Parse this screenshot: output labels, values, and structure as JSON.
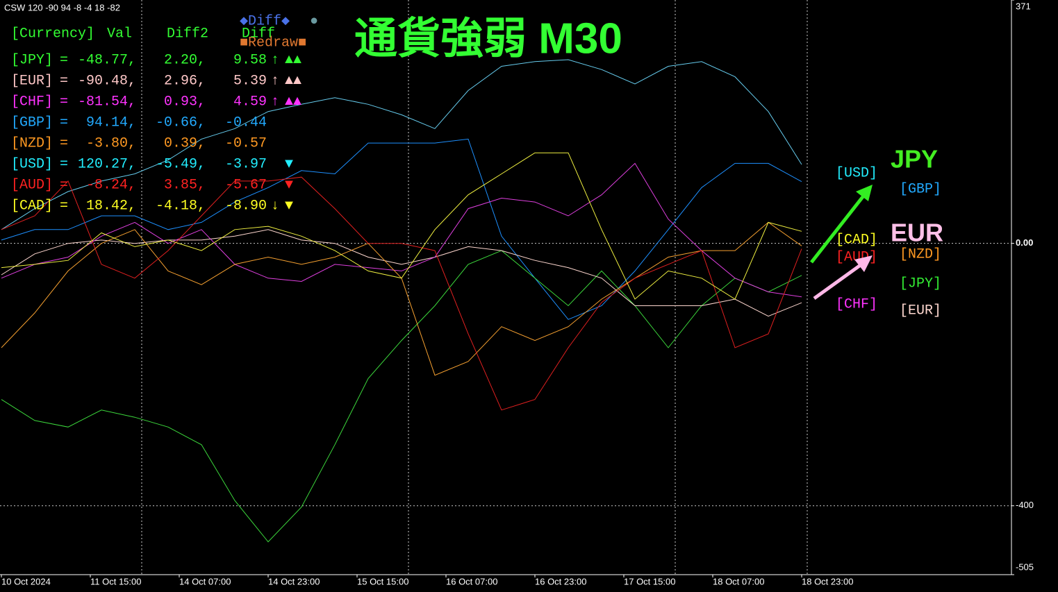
{
  "chart_data": {
    "type": "line",
    "info": "CSW 120 -90 94 -8 -4 18 -82",
    "title": "通貨強弱 M30",
    "buttons": [
      {
        "text": "◆Diff◆",
        "color": "#4a72e8"
      },
      {
        "text": "●",
        "color": "#6a9aa0"
      },
      {
        "text": "■Redraw■",
        "color": "#e07830"
      }
    ],
    "panel": {
      "header": [
        "[Currency]",
        "Val",
        "Diff2",
        "Diff"
      ],
      "header_color": "#33ff33",
      "rows": [
        {
          "label": "[JPY]",
          "eq": "=",
          "val": "-48.77,",
          "diff2": "2.20,",
          "diff": "9.58",
          "arrow": "↑",
          "mark": "▲▲",
          "color": "#33ff33"
        },
        {
          "label": "[EUR]",
          "eq": "=",
          "val": "-90.48,",
          "diff2": "2.96,",
          "diff": "5.39",
          "arrow": "↑",
          "mark": "▲▲",
          "color": "#ffc8c8"
        },
        {
          "label": "[CHF]",
          "eq": "=",
          "val": "-81.54,",
          "diff2": "0.93,",
          "diff": "4.59",
          "arrow": "↑",
          "mark": "▲▲",
          "color": "#ff33ff"
        },
        {
          "label": "[GBP]",
          "eq": "=",
          "val": "94.14,",
          "diff2": "-0.66,",
          "diff": "-0.44",
          "color": "#22aaff"
        },
        {
          "label": "[NZD]",
          "eq": "=",
          "val": "-3.80,",
          "diff2": "0.39,",
          "diff": "-0.57",
          "color": "#ff9922"
        },
        {
          "label": "[USD]",
          "eq": "=",
          "val": "120.27,",
          "diff2": "-5.49,",
          "diff": "-3.97",
          "mark": "▼",
          "color": "#22eeff"
        },
        {
          "label": "[AUD]",
          "eq": "=",
          "val": "-8.24,",
          "diff2": "3.85,",
          "diff": "-5.67",
          "mark": "▼",
          "color": "#ff2222"
        },
        {
          "label": "[CAD]",
          "eq": "=",
          "val": "18.42,",
          "diff2": "-4.18,",
          "diff": "-8.90",
          "arrow": "↓",
          "mark": "▼",
          "color": "#ffff22"
        }
      ]
    },
    "annotations": [
      {
        "text": "[USD]",
        "color": "#22eeff"
      },
      {
        "text": "JPY",
        "color": "#44ee22"
      },
      {
        "text": "[GBP]",
        "color": "#22aaff"
      },
      {
        "text": "[CAD]",
        "color": "#ffff22"
      },
      {
        "text": "EUR",
        "color": "#ffc0e8"
      },
      {
        "text": "[AUD]",
        "color": "#ff2222"
      },
      {
        "text": "[NZD]",
        "color": "#ff9922"
      },
      {
        "text": "[JPY]",
        "color": "#33ee33"
      },
      {
        "text": "[CHF]",
        "color": "#ff33ff"
      },
      {
        "text": "[EUR]",
        "color": "#ffd8d0"
      }
    ],
    "x": [
      0,
      6,
      12,
      18,
      24,
      30,
      36,
      42,
      48,
      54,
      60,
      66,
      72,
      78,
      84,
      90,
      96,
      102,
      108,
      114,
      120,
      126,
      132,
      138,
      144
    ],
    "xlim": [
      0,
      181.75
    ],
    "xticks": [
      {
        "value": 0,
        "label": "10 Oct 2024"
      },
      {
        "value": 16,
        "label": "11 Oct 15:00"
      },
      {
        "value": 32,
        "label": "14 Oct 07:00"
      },
      {
        "value": 48,
        "label": "14 Oct 23:00"
      },
      {
        "value": 64,
        "label": "15 Oct 15:00"
      },
      {
        "value": 80,
        "label": "16 Oct 07:00"
      },
      {
        "value": 96,
        "label": "16 Oct 23:00"
      },
      {
        "value": 112,
        "label": "17 Oct 15:00"
      },
      {
        "value": 128,
        "label": "18 Oct 07:00"
      },
      {
        "value": 144,
        "label": "18 Oct 23:00"
      }
    ],
    "ylim": [
      -505,
      371
    ],
    "yticks": [
      371,
      {
        "value": 0,
        "label": "0.00"
      },
      -400,
      -505
    ],
    "grid": true,
    "series": [
      {
        "name": "USD",
        "color": "#66ccee",
        "values": [
          21,
          53,
          79,
          95,
          106,
          127,
          159,
          175,
          201,
          212,
          222,
          212,
          196,
          175,
          233,
          270,
          277,
          280,
          265,
          243,
          270,
          277,
          254,
          201,
          120.27
        ]
      },
      {
        "name": "GBP",
        "color": "#1e90ff",
        "values": [
          5,
          21,
          21,
          42,
          42,
          21,
          32,
          63,
          85,
          111,
          106,
          153,
          153,
          153,
          159,
          11,
          -53,
          -116,
          -95,
          -42,
          21,
          85,
          122,
          122,
          94.14
        ]
      },
      {
        "name": "JPY",
        "color": "#3cd83c",
        "values": [
          -238,
          -270,
          -280,
          -254,
          -265,
          -280,
          -307,
          -392,
          -455,
          -402,
          -307,
          -206,
          -148,
          -95,
          -32,
          -11,
          -53,
          -95,
          -42,
          -95,
          -159,
          -95,
          -53,
          -74,
          -48.77
        ]
      },
      {
        "name": "EUR",
        "color": "#ffd8d0",
        "values": [
          -48,
          -16,
          0,
          5,
          0,
          5,
          5,
          11,
          21,
          5,
          0,
          -21,
          -32,
          -21,
          -5,
          -11,
          -26,
          -37,
          -53,
          -95,
          -95,
          -95,
          -85,
          -111,
          -90.48
        ]
      },
      {
        "name": "CHF",
        "color": "#e040e0",
        "values": [
          -53,
          -32,
          -21,
          11,
          32,
          0,
          21,
          -32,
          -53,
          -58,
          -32,
          -37,
          -42,
          -21,
          53,
          69,
          63,
          42,
          74,
          122,
          37,
          -11,
          -53,
          -74,
          -81.54
        ]
      },
      {
        "name": "NZD",
        "color": "#f5a030",
        "values": [
          -159,
          -106,
          -42,
          0,
          21,
          -42,
          -63,
          -32,
          -21,
          -32,
          -21,
          0,
          -53,
          -201,
          -180,
          -127,
          -148,
          -127,
          -85,
          -53,
          -21,
          -11,
          -11,
          32,
          -3.8
        ]
      },
      {
        "name": "AUD",
        "color": "#e02020",
        "values": [
          21,
          42,
          95,
          -32,
          -53,
          -11,
          42,
          95,
          95,
          101,
          53,
          0,
          0,
          -11,
          -138,
          -254,
          -238,
          -159,
          -90,
          -53,
          -32,
          -11,
          -159,
          -138,
          -8.24
        ]
      },
      {
        "name": "CAD",
        "color": "#f0f040",
        "values": [
          -37,
          -32,
          -26,
          16,
          -5,
          5,
          -11,
          21,
          26,
          11,
          -11,
          -42,
          -53,
          21,
          74,
          106,
          138,
          138,
          21,
          -85,
          -42,
          -53,
          -85,
          32,
          18.42
        ]
      }
    ]
  }
}
